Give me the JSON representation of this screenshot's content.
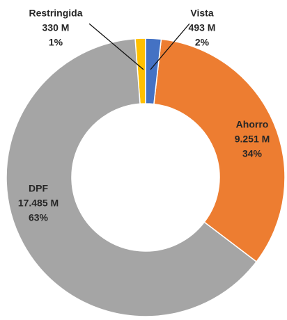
{
  "chart_data": {
    "type": "donut",
    "categories": [
      "Vista",
      "Ahorro",
      "DPF",
      "Restringida"
    ],
    "values": [
      493,
      9251,
      17485,
      330
    ],
    "value_labels": [
      "493 M",
      "9.251 M",
      "17.485 M",
      "330 M"
    ],
    "percent_labels": [
      "2%",
      "34%",
      "63%",
      "1%"
    ],
    "colors": [
      "#4472c4",
      "#ed7d31",
      "#a5a5a5",
      "#ffc000"
    ]
  }
}
